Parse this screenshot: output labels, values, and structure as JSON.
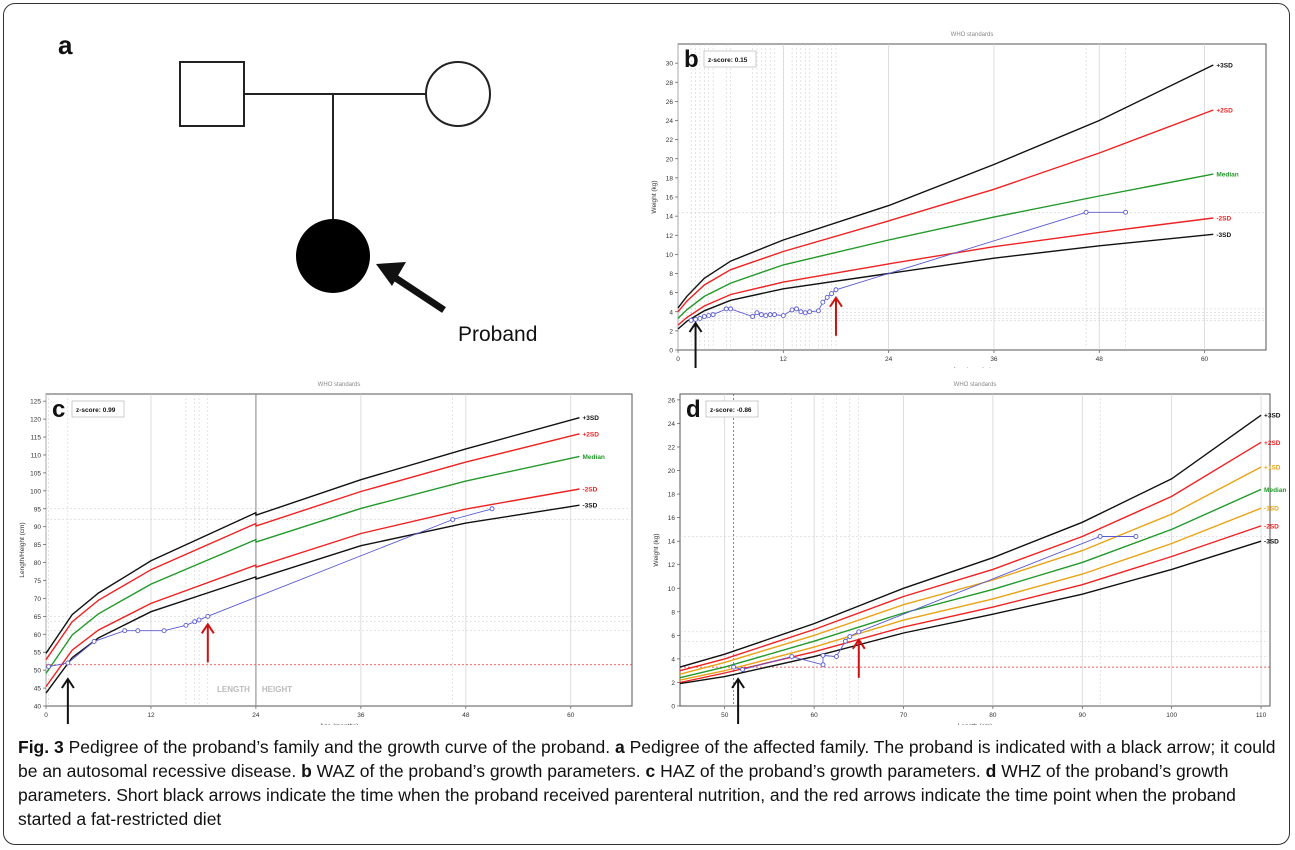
{
  "figure": {
    "caption_label": "Fig. 3",
    "caption_text": "Pedigree of the proband’s family and the growth curve of the proband.",
    "caption_parts": [
      {
        "letter": "a",
        "text": "Pedigree of the affected family. The proband is indicated with a black arrow; it could be an autosomal recessive disease."
      },
      {
        "letter": "b",
        "text": "WAZ of the proband’s growth parameters."
      },
      {
        "letter": "c",
        "text": "HAZ of the proband’s growth parameters."
      },
      {
        "letter": "d",
        "text": "WHZ of the proband’s growth parameters. Short black arrows indicate the time when the proband received parenteral nutrition, and the red arrows indicate the time point when the proband started a fat-restricted diet"
      }
    ]
  },
  "pedigree": {
    "letter": "a",
    "proband_label": "Proband",
    "arrow_color": "#111111"
  },
  "colors": {
    "sd3": "#111111",
    "sd2": "#ee2222",
    "sd1": "#e8a317",
    "median": "#22992a",
    "patient": "#5a5ad0",
    "arrow_red": "#cc1111",
    "arrow_black": "#111111"
  },
  "chart_data": [
    {
      "letter": "b",
      "type": "line",
      "title": "WHO standards",
      "zscore": "z-score: 0.15",
      "xlabel": "Age (months)",
      "ylabel": "Weight (kg)",
      "xlim": [
        0,
        67
      ],
      "ylim": [
        0,
        32
      ],
      "xticks": [
        0,
        12,
        24,
        36,
        48,
        60
      ],
      "yticks": [
        0,
        2,
        4,
        6,
        8,
        10,
        12,
        14,
        16,
        18,
        20,
        22,
        24,
        26,
        28,
        30
      ],
      "grid": true,
      "series": [
        {
          "name": "+3SD",
          "color_key": "sd3",
          "x": [
            0,
            1,
            3,
            6,
            12,
            24,
            36,
            48,
            61
          ],
          "y": [
            4.4,
            5.6,
            7.5,
            9.3,
            11.5,
            15.1,
            19.4,
            24.0,
            29.8
          ]
        },
        {
          "name": "+2SD",
          "color_key": "sd2",
          "x": [
            0,
            1,
            3,
            6,
            12,
            24,
            36,
            48,
            61
          ],
          "y": [
            4.0,
            5.1,
            6.8,
            8.4,
            10.3,
            13.5,
            16.8,
            20.6,
            25.1
          ]
        },
        {
          "name": "Median",
          "color_key": "median",
          "x": [
            0,
            1,
            3,
            6,
            12,
            24,
            36,
            48,
            61
          ],
          "y": [
            3.3,
            4.2,
            5.6,
            7.0,
            8.9,
            11.5,
            13.9,
            16.1,
            18.4
          ]
        },
        {
          "name": "-2SD",
          "color_key": "sd2",
          "x": [
            0,
            1,
            3,
            6,
            12,
            24,
            36,
            48,
            61
          ],
          "y": [
            2.6,
            3.4,
            4.6,
            5.8,
            7.1,
            9.0,
            10.8,
            12.3,
            13.8
          ]
        },
        {
          "name": "-3SD",
          "color_key": "sd3",
          "x": [
            0,
            1,
            3,
            6,
            12,
            24,
            36,
            48,
            61
          ],
          "y": [
            2.2,
            3.0,
            4.1,
            5.2,
            6.4,
            8.0,
            9.6,
            10.9,
            12.1
          ]
        },
        {
          "name": "",
          "color_key": "patient",
          "markers": true,
          "x": [
            1.5,
            2.0,
            2.5,
            3.0,
            3.5,
            4.0,
            5.5,
            6.0,
            8.5,
            9.0,
            9.5,
            10.0,
            10.5,
            11.0,
            12.0,
            13.0,
            13.5,
            14.0,
            14.5,
            15.0,
            16.0,
            16.5,
            17.0,
            17.5,
            18.0,
            46.5,
            51.0
          ],
          "y": [
            3.1,
            3.2,
            3.3,
            3.5,
            3.6,
            3.7,
            4.3,
            4.3,
            3.5,
            3.9,
            3.7,
            3.6,
            3.7,
            3.7,
            3.6,
            4.2,
            4.3,
            4.0,
            3.9,
            4.0,
            4.1,
            5.0,
            5.5,
            5.9,
            6.3,
            14.4,
            14.4
          ]
        }
      ],
      "arrows": {
        "black_x": 2.0,
        "red_x": 18.0
      }
    },
    {
      "letter": "c",
      "type": "line",
      "title": "WHO standards",
      "zscore": "z-score: 0.99",
      "xlabel": "Age (months)",
      "ylabel": "Length/Height (cm)",
      "xlim": [
        0,
        67
      ],
      "ylim": [
        40,
        127
      ],
      "xticks": [
        0,
        12,
        24,
        36,
        48,
        60
      ],
      "yticks": [
        40,
        45,
        50,
        55,
        60,
        65,
        70,
        75,
        80,
        85,
        90,
        95,
        100,
        105,
        110,
        115,
        120,
        125
      ],
      "grid": true,
      "section_labels": [
        "LENGTH",
        "HEIGHT"
      ],
      "series": [
        {
          "name": "+3SD",
          "color_key": "sd3",
          "x": [
            0,
            3,
            6,
            12,
            24,
            24.01,
            36,
            48,
            61
          ],
          "y": [
            54.7,
            65.5,
            71.5,
            80.5,
            93.9,
            93.2,
            103.1,
            111.7,
            120.4
          ]
        },
        {
          "name": "+2SD",
          "color_key": "sd2",
          "x": [
            0,
            3,
            6,
            12,
            24,
            24.01,
            36,
            48,
            61
          ],
          "y": [
            52.9,
            63.5,
            69.5,
            78.0,
            90.9,
            90.2,
            99.8,
            108.0,
            115.9
          ]
        },
        {
          "name": "Median",
          "color_key": "median",
          "x": [
            0,
            3,
            6,
            12,
            24,
            24.01,
            36,
            48,
            61
          ],
          "y": [
            49.1,
            59.8,
            65.7,
            74.0,
            86.4,
            85.7,
            95.1,
            102.7,
            109.6
          ]
        },
        {
          "name": "-2SD",
          "color_key": "sd2",
          "x": [
            0,
            3,
            6,
            12,
            24,
            24.01,
            36,
            48,
            61
          ],
          "y": [
            45.4,
            55.6,
            61.2,
            68.6,
            79.3,
            78.7,
            88.1,
            94.9,
            100.5
          ]
        },
        {
          "name": "-3SD",
          "color_key": "sd3",
          "x": [
            0,
            3,
            6,
            12,
            24,
            24.01,
            36,
            48,
            61
          ],
          "y": [
            43.6,
            53.5,
            59.0,
            66.3,
            76.0,
            75.4,
            84.7,
            91.0,
            96.0
          ]
        },
        {
          "name": "",
          "color_key": "patient",
          "markers": true,
          "x": [
            0.3,
            2.5,
            5.5,
            9.0,
            10.5,
            13.5,
            16.0,
            17.0,
            17.5,
            18.5,
            46.5,
            51.0
          ],
          "y": [
            51.0,
            52.0,
            58.0,
            61.0,
            61.0,
            61.0,
            62.5,
            63.5,
            64.0,
            65.0,
            92.0,
            95.0
          ]
        }
      ],
      "arrows": {
        "black_x": 2.5,
        "red_x": 18.5
      }
    },
    {
      "letter": "d",
      "type": "line",
      "title": "WHO standards",
      "zscore": "z-score: -0.86",
      "xlabel": "Length (cm)",
      "ylabel": "Weight (kg)",
      "xlim": [
        45,
        111
      ],
      "ylim": [
        0,
        26.5
      ],
      "xticks": [
        50,
        60,
        70,
        80,
        90,
        100,
        110
      ],
      "yticks": [
        0,
        2,
        4,
        6,
        8,
        10,
        12,
        14,
        16,
        18,
        20,
        22,
        24,
        26
      ],
      "grid": true,
      "series": [
        {
          "name": "+3SD",
          "color_key": "sd3",
          "x": [
            45,
            50,
            60,
            70,
            80,
            90,
            100,
            110
          ],
          "y": [
            3.3,
            4.4,
            7.0,
            10.0,
            12.6,
            15.6,
            19.3,
            24.7
          ]
        },
        {
          "name": "+2SD",
          "color_key": "sd2",
          "x": [
            45,
            50,
            60,
            70,
            80,
            90,
            100,
            110
          ],
          "y": [
            3.0,
            4.0,
            6.5,
            9.3,
            11.6,
            14.4,
            17.8,
            22.4
          ]
        },
        {
          "name": "+1SD",
          "color_key": "sd1",
          "x": [
            45,
            50,
            60,
            70,
            80,
            90,
            100,
            110
          ],
          "y": [
            2.7,
            3.7,
            6.0,
            8.6,
            10.7,
            13.2,
            16.3,
            20.3
          ]
        },
        {
          "name": "Median",
          "color_key": "median",
          "x": [
            45,
            50,
            60,
            70,
            80,
            90,
            100,
            110
          ],
          "y": [
            2.4,
            3.3,
            5.5,
            7.9,
            9.9,
            12.2,
            15.0,
            18.4
          ]
        },
        {
          "name": "-1SD",
          "color_key": "sd1",
          "x": [
            45,
            50,
            60,
            70,
            80,
            90,
            100,
            110
          ],
          "y": [
            2.2,
            3.0,
            5.0,
            7.3,
            9.1,
            11.2,
            13.8,
            16.8
          ]
        },
        {
          "name": "-2SD",
          "color_key": "sd2",
          "x": [
            45,
            50,
            60,
            70,
            80,
            90,
            100,
            110
          ],
          "y": [
            2.0,
            2.8,
            4.6,
            6.7,
            8.4,
            10.3,
            12.7,
            15.3
          ]
        },
        {
          "name": "-3SD",
          "color_key": "sd3",
          "x": [
            45,
            50,
            60,
            70,
            80,
            90,
            100,
            110
          ],
          "y": [
            1.9,
            2.5,
            4.2,
            6.2,
            7.8,
            9.5,
            11.6,
            14.0
          ]
        },
        {
          "name": "",
          "color_key": "patient",
          "markers": true,
          "x": [
            51.0,
            52.0,
            57.5,
            61.0,
            61.0,
            62.5,
            63.5,
            64.0,
            65.0,
            92.0,
            96.0
          ],
          "y": [
            3.3,
            3.1,
            4.2,
            3.5,
            4.3,
            4.2,
            5.5,
            5.9,
            6.3,
            14.4,
            14.4
          ]
        }
      ],
      "arrows": {
        "black_x": 51.5,
        "red_x": 65.0
      }
    }
  ]
}
